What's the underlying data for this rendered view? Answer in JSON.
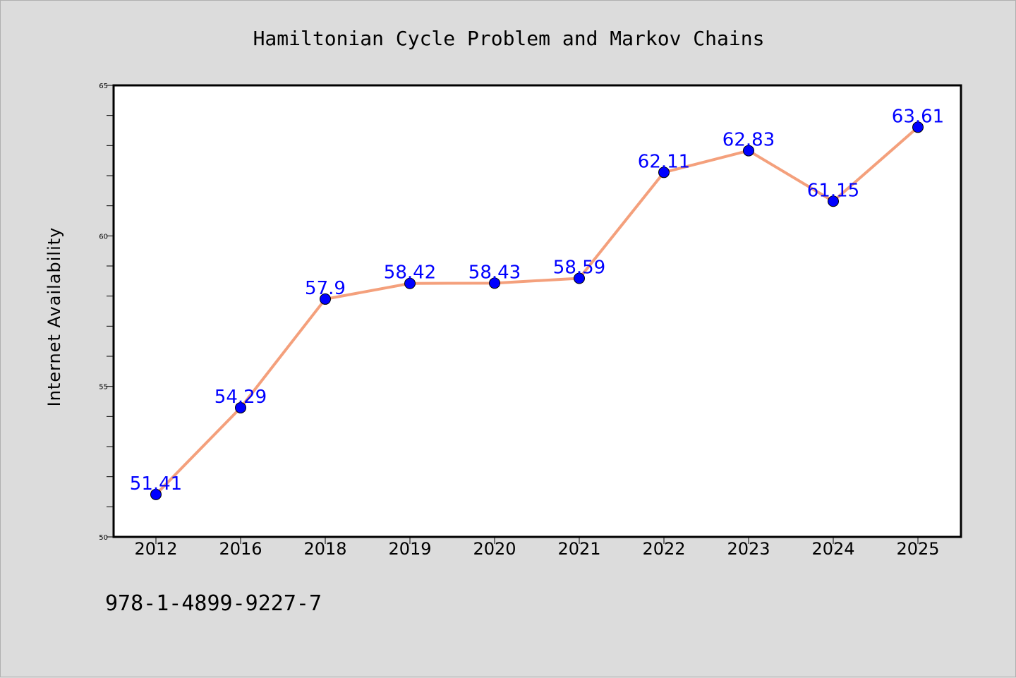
{
  "chart_data": {
    "type": "line",
    "title": "Hamiltonian Cycle Problem and Markov Chains",
    "xlabel": "",
    "ylabel": "Internet Availability",
    "categories": [
      "2012",
      "2016",
      "2018",
      "2019",
      "2020",
      "2021",
      "2022",
      "2023",
      "2024",
      "2025"
    ],
    "values": [
      51.41,
      54.29,
      57.9,
      58.42,
      58.43,
      58.59,
      62.11,
      62.83,
      61.15,
      63.61
    ],
    "data_labels": [
      "51.41",
      "54.29",
      "57.9",
      "58.42",
      "58.43",
      "58.59",
      "62.11",
      "62.83",
      "61.15",
      "63.61"
    ],
    "ylim": [
      50,
      65
    ],
    "yticks": [
      "50",
      "55",
      "60",
      "65"
    ],
    "grid": false,
    "legend": "none"
  },
  "footer": {
    "isbn": "978-1-4899-9227-7"
  },
  "colors": {
    "background": "#dcdcdc",
    "plot_background": "#ffffff",
    "line": "#f4a07c",
    "marker": "#0000ff",
    "data_label": "#0000ff"
  }
}
